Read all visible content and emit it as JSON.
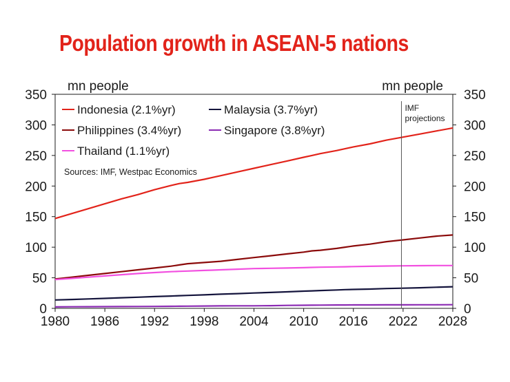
{
  "title": "Population growth in ASEAN-5 nations",
  "chart_data": {
    "type": "line",
    "title": "Population growth in ASEAN-5 nations",
    "ylabel_left": "mn people",
    "ylabel_right": "mn people",
    "xlim": [
      1980,
      2028
    ],
    "ylim": [
      0,
      350
    ],
    "x_ticks": [
      "1980",
      "1986",
      "1992",
      "1998",
      "2004",
      "2010",
      "2016",
      "2022",
      "2028"
    ],
    "y_ticks": [
      "0",
      "50",
      "100",
      "150",
      "200",
      "250",
      "300",
      "350"
    ],
    "annotation": {
      "x": 2021.8,
      "label_line1": "IMF",
      "label_line2": "projections"
    },
    "source": "Sources: IMF, Westpac Economics",
    "legend_placement": "top-left",
    "grid": false,
    "x": [
      1980,
      1982,
      1984,
      1986,
      1988,
      1990,
      1992,
      1994,
      1995,
      1996,
      1998,
      1999,
      2000,
      2002,
      2004,
      2006,
      2008,
      2010,
      2011,
      2012,
      2014,
      2015,
      2016,
      2018,
      2020,
      2022,
      2024,
      2026,
      2028
    ],
    "series": [
      {
        "name": "Indonesia (2.1%yr)",
        "color": "#e2231a",
        "values": [
          147,
          155,
          163,
          171,
          179,
          186,
          194,
          201,
          204,
          206,
          211,
          214,
          217,
          223,
          229,
          235,
          241,
          247,
          250,
          253,
          258,
          261,
          264,
          269,
          275,
          280,
          285,
          290,
          295
        ]
      },
      {
        "name": "Philippines (3.4%yr)",
        "color": "#8b0a0a",
        "values": [
          48,
          51,
          54,
          57,
          60,
          63,
          66,
          69,
          71,
          73,
          75,
          76,
          77,
          80,
          83,
          86,
          89,
          92,
          94,
          95,
          98,
          100,
          102,
          105,
          109,
          112,
          115,
          118,
          120
        ]
      },
      {
        "name": "Thailand (1.1%yr)",
        "color": "#f24fe0",
        "values": [
          47,
          49,
          51,
          53,
          55,
          57,
          58.5,
          60,
          60.5,
          61,
          62,
          62.5,
          63,
          64,
          65,
          65.5,
          66,
          66.5,
          67,
          67.3,
          67.8,
          68,
          68.3,
          68.8,
          69.2,
          69.5,
          69.8,
          70,
          70
        ]
      },
      {
        "name": "Malaysia (3.7%yr)",
        "color": "#14143c",
        "values": [
          13.7,
          14.5,
          15.4,
          16.3,
          17.3,
          18.2,
          19.2,
          20.2,
          20.7,
          21.2,
          22.1,
          22.6,
          23.2,
          24.1,
          25.1,
          26.0,
          27.0,
          28.1,
          28.6,
          29.2,
          30.1,
          30.6,
          31.0,
          31.5,
          32.4,
          33.0,
          33.7,
          34.5,
          35.3
        ]
      },
      {
        "name": "Singapore (3.8%yr)",
        "color": "#8b2ab3",
        "values": [
          2.4,
          2.6,
          2.7,
          2.8,
          2.9,
          3.0,
          3.2,
          3.4,
          3.5,
          3.6,
          3.8,
          3.9,
          4.0,
          4.2,
          4.2,
          4.4,
          4.8,
          5.1,
          5.2,
          5.3,
          5.5,
          5.5,
          5.6,
          5.6,
          5.7,
          5.7,
          5.8,
          5.9,
          6.0
        ]
      }
    ],
    "legend": [
      {
        "name": "Indonesia (2.1%yr)",
        "color": "#e2231a"
      },
      {
        "name": "Malaysia (3.7%yr)",
        "color": "#14143c"
      },
      {
        "name": "Philippines (3.4%yr)",
        "color": "#8b0a0a"
      },
      {
        "name": "Singapore (3.8%yr)",
        "color": "#8b2ab3"
      },
      {
        "name": "Thailand (1.1%yr)",
        "color": "#f24fe0"
      }
    ]
  }
}
